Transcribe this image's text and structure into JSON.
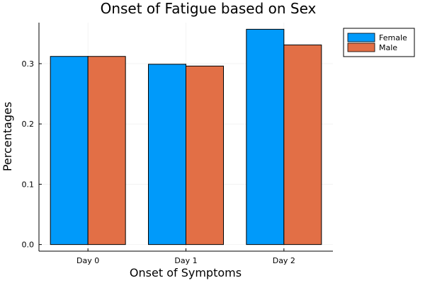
{
  "chart_data": {
    "type": "bar",
    "title": "Onset of Fatigue based on Sex",
    "xlabel": "Onset of Symptoms",
    "ylabel": "Percentages",
    "categories": [
      "Day 0",
      "Day 1",
      "Day 2"
    ],
    "series": [
      {
        "name": "Female",
        "values": [
          0.312,
          0.299,
          0.357
        ],
        "color": "#009AFA"
      },
      {
        "name": "Male",
        "values": [
          0.312,
          0.296,
          0.331
        ],
        "color": "#E26F46"
      }
    ],
    "yticks": [
      0.0,
      0.1,
      0.2,
      0.3
    ],
    "ytick_labels": [
      "0.0",
      "0.1",
      "0.2",
      "0.3"
    ],
    "ylim": [
      -0.011,
      0.368
    ],
    "grid": true,
    "legend_position": "top-right"
  }
}
